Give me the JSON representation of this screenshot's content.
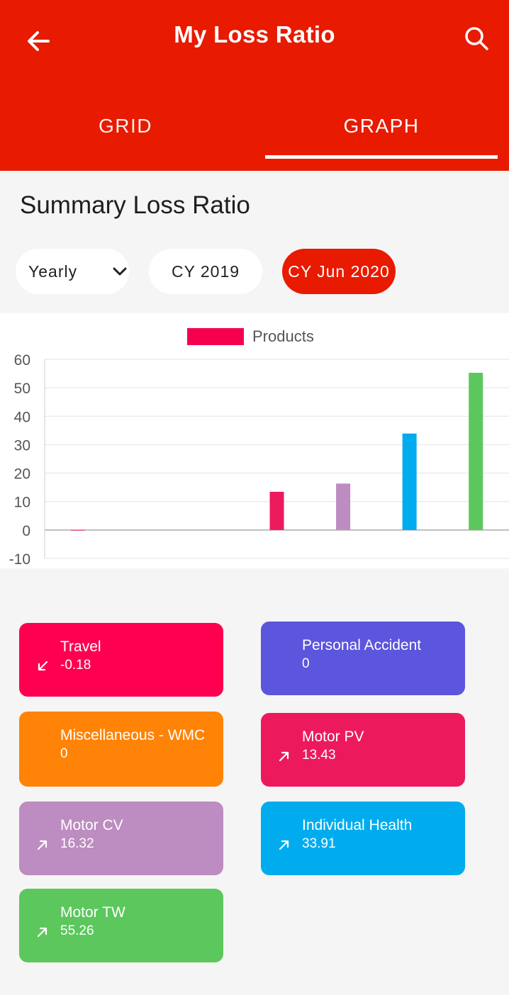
{
  "header": {
    "title": "My Loss Ratio",
    "back_icon": "arrow-left-icon",
    "search_icon": "search-icon",
    "color": "#e81a00"
  },
  "tabs": [
    {
      "label": "GRID",
      "active": false
    },
    {
      "label": "GRAPH",
      "active": true
    }
  ],
  "summary": {
    "title": "Summary Loss Ratio"
  },
  "filters": {
    "period": "Yearly",
    "chips": [
      {
        "label": "CY 2019",
        "selected": false
      },
      {
        "label": "CY Jun 2020",
        "selected": true
      }
    ]
  },
  "chart_data": {
    "type": "bar",
    "title": "",
    "xlabel": "",
    "ylabel": "",
    "legend": {
      "label": "Products",
      "color": "#f5004f",
      "placement": "top-center"
    },
    "ylim": [
      -10,
      60
    ],
    "yticks": [
      60,
      50,
      40,
      30,
      20,
      10,
      0,
      -10
    ],
    "grid": true,
    "categories": [
      "Travel",
      "Personal Accident",
      "Miscellaneous - WMC",
      "Motor PV",
      "Motor CV",
      "Individual Health",
      "Motor TW"
    ],
    "values": [
      -0.18,
      0,
      0,
      13.43,
      16.32,
      33.91,
      55.26
    ],
    "colors": [
      "#f5004f",
      "#5c55dd",
      "#ff8306",
      "#ec1a5d",
      "#bd8cc0",
      "#00acee",
      "#5cc75c"
    ]
  },
  "cards": [
    {
      "name": "Travel",
      "value": "-0.18",
      "color": "#ff0050",
      "trend": "down",
      "icon": "arrow-down-left-icon"
    },
    {
      "name": "Personal Accident",
      "value": "0",
      "color": "#5c55dd",
      "trend": "none",
      "icon": ""
    },
    {
      "name": "Miscellaneous - WMC",
      "value": "0",
      "color": "#ff8306",
      "trend": "none",
      "icon": ""
    },
    {
      "name": "Motor PV",
      "value": "13.43",
      "color": "#ec1a5d",
      "trend": "up",
      "icon": "arrow-up-right-icon"
    },
    {
      "name": "Motor CV",
      "value": "16.32",
      "color": "#bd8cc0",
      "trend": "up",
      "icon": "arrow-up-right-icon"
    },
    {
      "name": "Individual Health",
      "value": "33.91",
      "color": "#00acee",
      "trend": "up",
      "icon": "arrow-up-right-icon"
    },
    {
      "name": "Motor TW",
      "value": "55.26",
      "color": "#5cc75c",
      "trend": "up",
      "icon": "arrow-up-right-icon"
    }
  ]
}
